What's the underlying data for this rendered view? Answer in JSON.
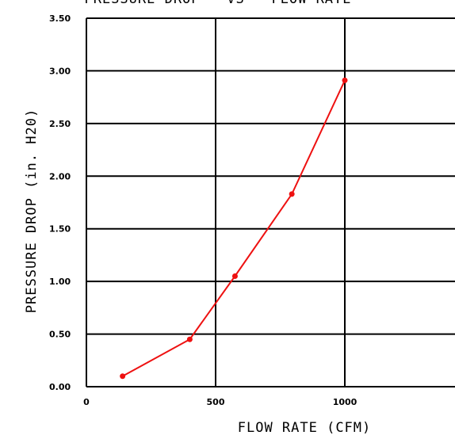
{
  "chart_data": {
    "type": "line",
    "title": "PRESSURE DROP - VS - FLOW RATE",
    "xlabel": "FLOW RATE (CFM)",
    "ylabel": "PRESSURE DROP (in. H20)",
    "xlim": [
      0,
      1400
    ],
    "ylim": [
      0,
      3.5
    ],
    "x_ticks": [
      0,
      500,
      1000
    ],
    "x_tick_labels": [
      "0",
      "500",
      "1000"
    ],
    "y_ticks": [
      0,
      0.5,
      1.0,
      1.5,
      2.0,
      2.5,
      3.0,
      3.5
    ],
    "y_tick_labels": [
      "0.00",
      "0.50",
      "1.00",
      "1.50",
      "2.00",
      "2.50",
      "3.00",
      "3.50"
    ],
    "grid": true,
    "series": [
      {
        "color": "#ee1111",
        "points": [
          {
            "x": 140,
            "y": 0.1
          },
          {
            "x": 400,
            "y": 0.45
          },
          {
            "x": 575,
            "y": 1.05
          },
          {
            "x": 795,
            "y": 1.83
          },
          {
            "x": 1000,
            "y": 2.91
          }
        ]
      }
    ]
  }
}
